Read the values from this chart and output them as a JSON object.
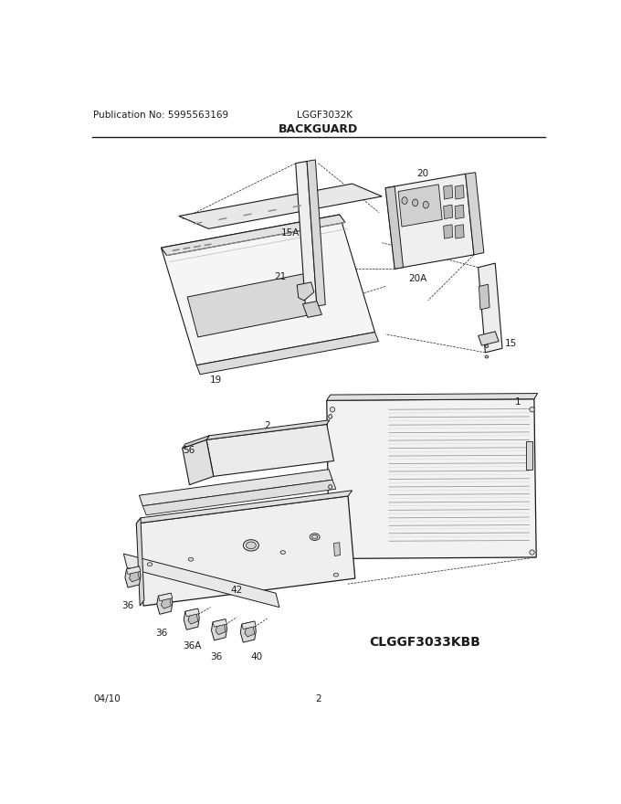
{
  "title": "BACKGUARD",
  "pub_no": "Publication No: 5995563169",
  "model": "LGGF3032K",
  "date": "04/10",
  "page": "2",
  "bottom_model": "CLGGF3033KBB",
  "bg_color": "#ffffff",
  "text_color": "#1a1a1a",
  "line_color": "#1a1a1a",
  "title_fontsize": 9,
  "label_fontsize": 7.5,
  "header_fontsize": 7.5
}
